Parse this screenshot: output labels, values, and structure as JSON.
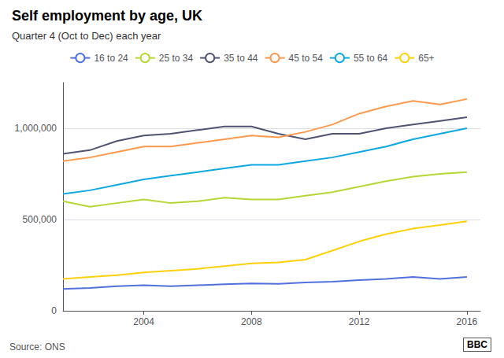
{
  "chart_data": {
    "type": "line",
    "title": "Self employment by age, UK",
    "subtitle": "Quarter 4 (Oct to Dec) each year",
    "annotations": [
      "Source: ONS",
      "BBC"
    ],
    "x": [
      2001,
      2002,
      2003,
      2004,
      2005,
      2006,
      2007,
      2008,
      2009,
      2010,
      2011,
      2012,
      2013,
      2014,
      2015,
      2016
    ],
    "series": [
      {
        "name": "16 to 24",
        "values": [
          120000,
          125000,
          135000,
          140000,
          135000,
          140000,
          145000,
          150000,
          148000,
          155000,
          160000,
          168000,
          175000,
          185000,
          175000,
          185000
        ]
      },
      {
        "name": "25 to 34",
        "values": [
          600000,
          570000,
          590000,
          610000,
          590000,
          600000,
          620000,
          610000,
          610000,
          630000,
          650000,
          680000,
          710000,
          735000,
          750000,
          760000
        ]
      },
      {
        "name": "35 to 44",
        "values": [
          860000,
          880000,
          930000,
          960000,
          970000,
          990000,
          1010000,
          1010000,
          970000,
          940000,
          970000,
          970000,
          1000000,
          1020000,
          1040000,
          1060000
        ]
      },
      {
        "name": "45 to 54",
        "values": [
          820000,
          840000,
          870000,
          900000,
          900000,
          920000,
          940000,
          960000,
          950000,
          980000,
          1020000,
          1080000,
          1120000,
          1150000,
          1130000,
          1160000
        ]
      },
      {
        "name": "55 to 64",
        "values": [
          640000,
          660000,
          690000,
          720000,
          740000,
          760000,
          780000,
          800000,
          800000,
          820000,
          840000,
          870000,
          900000,
          940000,
          970000,
          1000000
        ]
      },
      {
        "name": "65+",
        "values": [
          175000,
          185000,
          195000,
          210000,
          220000,
          230000,
          245000,
          260000,
          265000,
          280000,
          330000,
          380000,
          420000,
          450000,
          470000,
          490000
        ]
      }
    ],
    "xlim": [
      2001,
      2016.5
    ],
    "xticks": [
      2004,
      2008,
      2012,
      2016
    ],
    "ylim": [
      0,
      1250000
    ],
    "yticks": [
      0,
      {
        "value": 500000,
        "label": "500,000"
      },
      {
        "value": 1000000,
        "label": "1,000,000"
      }
    ],
    "grid": true,
    "legend": "top"
  }
}
